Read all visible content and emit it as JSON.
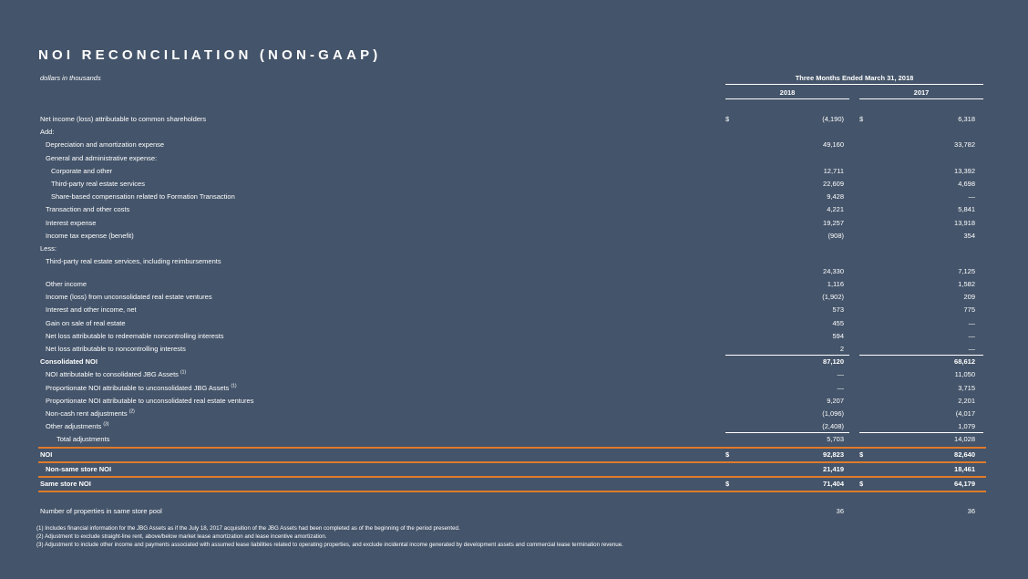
{
  "title": "NOI RECONCILIATION (NON-GAAP)",
  "units_label": "dollars in thousands",
  "period_label": "Three Months Ended March 31, 2018",
  "col_years": [
    "2018",
    "2017"
  ],
  "rows": [
    {
      "label": "Net income (loss) attributable to common shareholders",
      "sym1": "$",
      "v1": "(4,190)",
      "sym2": "$",
      "v2": "6,318"
    },
    {
      "label": "Add:",
      "v1": "",
      "v2": ""
    },
    {
      "label": "Depreciation and amortization expense",
      "v1": "49,160",
      "v2": "33,782"
    },
    {
      "label": "General and administrative expense:",
      "v1": "",
      "v2": ""
    },
    {
      "label": "Corporate and other",
      "v1": "12,711",
      "v2": "13,392"
    },
    {
      "label": "Third-party real estate services",
      "v1": "22,609",
      "v2": "4,698"
    },
    {
      "label": "Share-based compensation related to Formation Transaction",
      "v1": "9,428",
      "v2": "—"
    },
    {
      "label": "Transaction and other costs",
      "v1": "4,221",
      "v2": "5,841"
    },
    {
      "label": "Interest expense",
      "v1": "19,257",
      "v2": "13,918"
    },
    {
      "label": "Income tax expense (benefit)",
      "v1": "(908)",
      "v2": "354"
    },
    {
      "label": "Less:",
      "v1": "",
      "v2": ""
    },
    {
      "label": "Third-party real estate services, including reimbursements",
      "v1": "24,330",
      "v2": "7,125"
    },
    {
      "label": "Other income",
      "v1": "1,116",
      "v2": "1,582"
    },
    {
      "label": "Income (loss) from unconsolidated real estate ventures",
      "v1": "(1,902)",
      "v2": "209"
    },
    {
      "label": "Interest and other income, net",
      "v1": "573",
      "v2": "775"
    },
    {
      "label": "Gain on sale of real estate",
      "v1": "455",
      "v2": "—"
    },
    {
      "label": "Net loss attributable to redeemable noncontrolling interests",
      "v1": "594",
      "v2": "—"
    },
    {
      "label": "Net loss attributable to noncontrolling interests",
      "v1": "2",
      "v2": "—"
    },
    {
      "label": "Consolidated NOI",
      "v1": "87,120",
      "v2": "68,612"
    },
    {
      "label": "NOI attributable to consolidated JBG Assets",
      "sup": "(1)",
      "v1": "—",
      "v2": "11,050"
    },
    {
      "label": "Proportionate NOI attributable to unconsolidated JBG Assets",
      "sup": "(1)",
      "v1": "—",
      "v2": "3,715"
    },
    {
      "label": "Proportionate NOI attributable to unconsolidated real estate ventures",
      "v1": "9,207",
      "v2": "2,201"
    },
    {
      "label": "Non-cash rent adjustments",
      "sup": "(2)",
      "v1": "(1,096)",
      "v2": "(4,017"
    },
    {
      "label": "Other adjustments",
      "sup": "(3)",
      "v1": "(2,408)",
      "v2": "1,079"
    },
    {
      "label": "Total adjustments",
      "v1": "5,703",
      "v2": "14,028"
    },
    {
      "label": "NOI",
      "sym1": "$",
      "v1": "92,823",
      "sym2": "$",
      "v2": "82,640"
    },
    {
      "label": "Non-same store NOI",
      "v1": "21,419",
      "v2": "18,461"
    },
    {
      "label": "Same store NOI",
      "sym1": "$",
      "v1": "71,404",
      "sym2": "$",
      "v2": "64,179"
    },
    {
      "label": "",
      "v1": "",
      "v2": ""
    },
    {
      "label": "Number of properties in same store pool",
      "v1": "36",
      "v2": "36"
    }
  ],
  "footnotes": [
    "(1)  Includes financial information for the JBG Assets as if the July 18, 2017 acquisition of the JBG Assets had been completed as of the beginning of the period presented.",
    "(2)  Adjustment to exclude straight-line rent, above/below market lease amortization and lease incentive amortization.",
    "(3)  Adjustment to include other income and payments associated with assumed lease liabilities related to operating properties, and exclude incidental income generated by development assets and commercial lease termination revenue."
  ]
}
